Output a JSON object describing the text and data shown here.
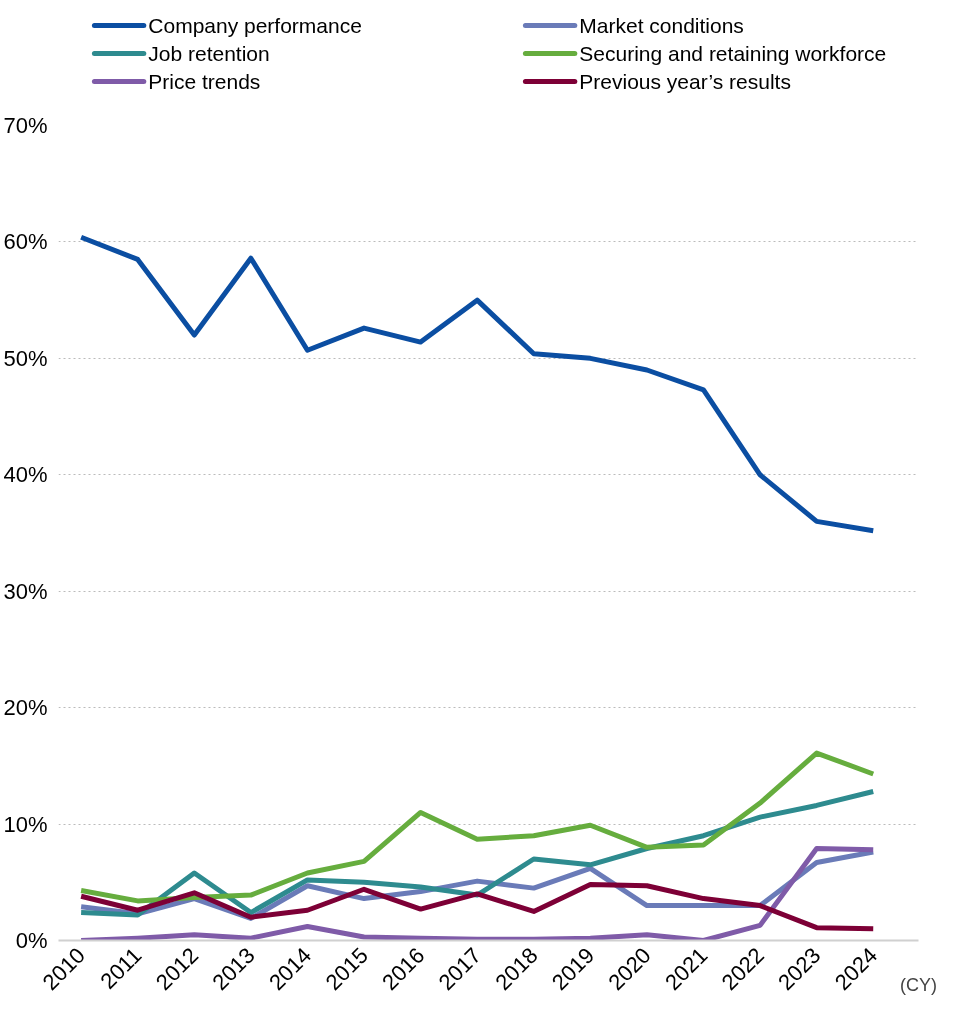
{
  "chart_data": {
    "type": "line",
    "xlabel": "(CY)",
    "x": [
      2010,
      2011,
      2012,
      2013,
      2014,
      2015,
      2016,
      2017,
      2018,
      2019,
      2020,
      2021,
      2022,
      2023,
      2024
    ],
    "xlim": [
      2009.6,
      2024.8
    ],
    "xticks": [
      2010,
      2011,
      2012,
      2013,
      2014,
      2015,
      2016,
      2017,
      2018,
      2019,
      2020,
      2021,
      2022,
      2023,
      2024
    ],
    "ylim": [
      0,
      70
    ],
    "yticks": [
      {
        "value": 0,
        "label": "0%"
      },
      {
        "value": 10,
        "label": "10%"
      },
      {
        "value": 20,
        "label": "20%"
      },
      {
        "value": 30,
        "label": "30%"
      },
      {
        "value": 40,
        "label": "40%"
      },
      {
        "value": 50,
        "label": "50%"
      },
      {
        "value": 60,
        "label": "60%"
      },
      {
        "value": 70,
        "label": "70%"
      }
    ],
    "grid": "y",
    "legend": "top",
    "marker": "none",
    "line_style": "solid",
    "series": [
      {
        "name": "Company performance",
        "color": "#0b4ea2",
        "values": [
          60.4,
          58.5,
          52.0,
          58.6,
          50.7,
          52.6,
          51.4,
          55.0,
          50.4,
          50.0,
          49.0,
          47.3,
          40.0,
          36.0,
          35.2
        ]
      },
      {
        "name": "Market conditions",
        "color": "#6a7bb8",
        "values": [
          2.9,
          2.3,
          3.6,
          1.9,
          4.7,
          3.6,
          4.2,
          5.1,
          4.5,
          6.2,
          3.0,
          3.0,
          3.0,
          6.7,
          7.6
        ]
      },
      {
        "name": "Job retention",
        "color": "#2e8b8f",
        "values": [
          2.4,
          2.2,
          5.8,
          2.4,
          5.2,
          5.0,
          4.6,
          3.9,
          7.0,
          6.5,
          7.9,
          9.0,
          10.6,
          11.6,
          12.8
        ]
      },
      {
        "name": "Securing and retaining workforce",
        "color": "#66ad3e",
        "values": [
          4.3,
          3.4,
          3.7,
          3.9,
          5.8,
          6.8,
          11.0,
          8.7,
          9.0,
          9.9,
          8.0,
          8.2,
          11.8,
          16.1,
          14.3
        ]
      },
      {
        "name": "Price trends",
        "color": "#7f5ba8",
        "values": [
          0.0,
          0.2,
          0.5,
          0.2,
          1.2,
          0.3,
          0.2,
          0.1,
          0.1,
          0.2,
          0.5,
          0.0,
          1.3,
          7.9,
          7.8
        ]
      },
      {
        "name": "Previous year’s results",
        "color": "#7d0036",
        "values": [
          3.8,
          2.6,
          4.1,
          2.0,
          2.6,
          4.4,
          2.7,
          4.0,
          2.5,
          4.8,
          4.7,
          3.6,
          3.0,
          1.1,
          1.0
        ]
      }
    ]
  }
}
